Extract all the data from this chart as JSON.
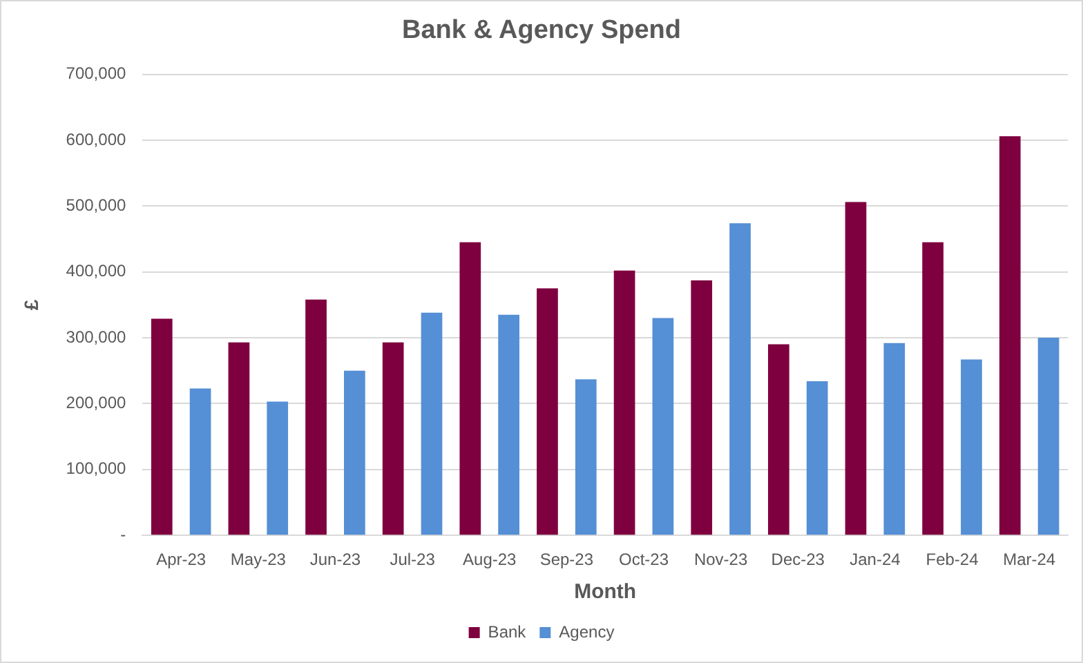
{
  "chart_data": {
    "type": "bar",
    "title": "Bank & Agency Spend",
    "xlabel": "Month",
    "ylabel": "£",
    "categories": [
      "Apr-23",
      "May-23",
      "Jun-23",
      "Jul-23",
      "Aug-23",
      "Sep-23",
      "Oct-23",
      "Nov-23",
      "Dec-23",
      "Jan-24",
      "Feb-24",
      "Mar-24"
    ],
    "series": [
      {
        "name": "Bank",
        "color": "#7f003f",
        "values": [
          329000,
          293000,
          358000,
          293000,
          445000,
          375000,
          402000,
          387000,
          290000,
          506000,
          445000,
          606000
        ]
      },
      {
        "name": "Agency",
        "color": "#558fd5",
        "values": [
          223000,
          203000,
          250000,
          338000,
          335000,
          237000,
          330000,
          474000,
          234000,
          292000,
          267000,
          300000
        ]
      }
    ],
    "ylim": [
      0,
      700000
    ],
    "yticks": [
      {
        "value": 0,
        "label": "-"
      },
      {
        "value": 100000,
        "label": "100,000"
      },
      {
        "value": 200000,
        "label": "200,000"
      },
      {
        "value": 300000,
        "label": "300,000"
      },
      {
        "value": 400000,
        "label": "400,000"
      },
      {
        "value": 500000,
        "label": "500,000"
      },
      {
        "value": 600000,
        "label": "600,000"
      },
      {
        "value": 700000,
        "label": "700,000"
      }
    ],
    "grid": "y",
    "legend": "bottom"
  }
}
